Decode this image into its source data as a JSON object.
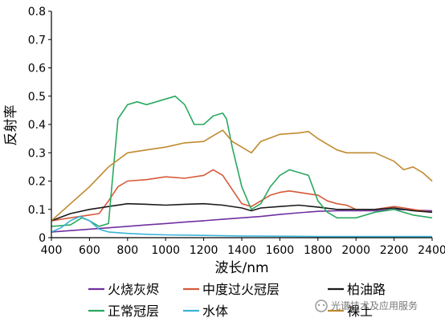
{
  "chart_data": {
    "type": "line",
    "xlabel": "波长/nm",
    "ylabel": "反射率",
    "xlim": [
      400,
      2400
    ],
    "ylim": [
      0,
      0.8
    ],
    "xticks": [
      400,
      600,
      800,
      1000,
      1200,
      1400,
      1600,
      1800,
      2000,
      2200,
      2400
    ],
    "yticks": [
      0,
      0.1,
      0.2,
      0.3,
      0.4,
      0.5,
      0.6,
      0.7,
      0.8
    ],
    "ytick_labels": [
      "0",
      "0.1",
      "0.2",
      "0.3",
      "0.4",
      "0.5",
      "0.6",
      "0.7",
      "0.8"
    ],
    "grid": false,
    "legend_position": "bottom",
    "series": [
      {
        "name": "火烧灰烬",
        "color": "#7030a0",
        "x": [
          400,
          500,
          600,
          700,
          800,
          900,
          1000,
          1100,
          1200,
          1300,
          1400,
          1500,
          1600,
          1700,
          1800,
          1900,
          2000,
          2100,
          2200,
          2300,
          2400
        ],
        "y": [
          0.02,
          0.025,
          0.03,
          0.035,
          0.04,
          0.045,
          0.05,
          0.055,
          0.06,
          0.065,
          0.07,
          0.075,
          0.082,
          0.088,
          0.093,
          0.095,
          0.095,
          0.095,
          0.1,
          0.098,
          0.095
        ]
      },
      {
        "name": "中度过火冠层",
        "color": "#d55a3a",
        "x": [
          400,
          500,
          600,
          650,
          700,
          750,
          800,
          900,
          1000,
          1100,
          1200,
          1250,
          1300,
          1350,
          1400,
          1450,
          1500,
          1550,
          1600,
          1650,
          1700,
          1750,
          1800,
          1850,
          1900,
          1950,
          2000,
          2100,
          2200,
          2300,
          2400
        ],
        "y": [
          0.06,
          0.07,
          0.08,
          0.085,
          0.13,
          0.18,
          0.2,
          0.205,
          0.215,
          0.21,
          0.22,
          0.24,
          0.22,
          0.17,
          0.12,
          0.11,
          0.13,
          0.15,
          0.16,
          0.165,
          0.16,
          0.155,
          0.15,
          0.13,
          0.12,
          0.115,
          0.1,
          0.1,
          0.11,
          0.1,
          0.09
        ]
      },
      {
        "name": "柏油路",
        "color": "#1a1a1a",
        "x": [
          400,
          500,
          600,
          700,
          800,
          900,
          1000,
          1100,
          1200,
          1300,
          1400,
          1450,
          1500,
          1600,
          1700,
          1800,
          1900,
          2000,
          2100,
          2200,
          2300,
          2400
        ],
        "y": [
          0.06,
          0.085,
          0.1,
          0.11,
          0.12,
          0.118,
          0.115,
          0.118,
          0.12,
          0.115,
          0.105,
          0.095,
          0.105,
          0.11,
          0.115,
          0.108,
          0.1,
          0.1,
          0.1,
          0.105,
          0.095,
          0.09
        ]
      },
      {
        "name": "正常冠层",
        "color": "#2aa860",
        "x": [
          400,
          500,
          560,
          600,
          650,
          700,
          720,
          750,
          800,
          850,
          900,
          950,
          1000,
          1050,
          1100,
          1150,
          1200,
          1250,
          1300,
          1320,
          1350,
          1400,
          1450,
          1500,
          1550,
          1600,
          1650,
          1700,
          1750,
          1800,
          1850,
          1900,
          2000,
          2100,
          2200,
          2300,
          2400
        ],
        "y": [
          0.04,
          0.045,
          0.07,
          0.06,
          0.04,
          0.05,
          0.2,
          0.42,
          0.47,
          0.48,
          0.47,
          0.48,
          0.49,
          0.5,
          0.47,
          0.4,
          0.4,
          0.43,
          0.44,
          0.42,
          0.32,
          0.18,
          0.1,
          0.12,
          0.18,
          0.22,
          0.24,
          0.23,
          0.22,
          0.13,
          0.09,
          0.07,
          0.07,
          0.09,
          0.1,
          0.08,
          0.07
        ]
      },
      {
        "name": "水体",
        "color": "#3bb4d8",
        "x": [
          400,
          450,
          500,
          550,
          600,
          650,
          700,
          800,
          900,
          1000,
          1200,
          1400,
          1600,
          1800,
          2000,
          2200,
          2400
        ],
        "y": [
          0.02,
          0.035,
          0.06,
          0.075,
          0.06,
          0.03,
          0.02,
          0.015,
          0.012,
          0.01,
          0.008,
          0.006,
          0.005,
          0.004,
          0.004,
          0.004,
          0.004
        ]
      },
      {
        "name": "裸土",
        "color": "#c08a30",
        "x": [
          400,
          500,
          600,
          700,
          800,
          900,
          1000,
          1100,
          1200,
          1250,
          1300,
          1350,
          1400,
          1450,
          1500,
          1600,
          1700,
          1750,
          1800,
          1850,
          1900,
          1950,
          2000,
          2100,
          2200,
          2250,
          2300,
          2350,
          2400
        ],
        "y": [
          0.06,
          0.12,
          0.18,
          0.25,
          0.3,
          0.31,
          0.32,
          0.335,
          0.34,
          0.36,
          0.38,
          0.34,
          0.32,
          0.3,
          0.34,
          0.365,
          0.37,
          0.375,
          0.35,
          0.33,
          0.31,
          0.3,
          0.3,
          0.3,
          0.27,
          0.24,
          0.25,
          0.23,
          0.2
        ]
      }
    ]
  },
  "watermark": "光谱技术及应用服务"
}
